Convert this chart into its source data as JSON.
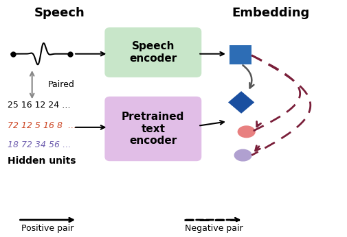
{
  "title": "",
  "speech_label": "Speech",
  "embedding_label": "Embedding",
  "speech_encoder_text": "Speech\nencoder",
  "pretrained_text": "Pretrained\ntext\nencoder",
  "hidden_units_label": "Hidden units",
  "paired_label": "Paired",
  "positive_pair_label": "Positive pair",
  "negative_pair_label": "Negative pair",
  "hu_line1": "25 16 12 24 …",
  "hu_line2": "72 12 5 16 8  …",
  "hu_line3": "18 72 34 56 …",
  "speech_box_color": "#c8e6c9",
  "pretrained_box_color": "#e1bee7",
  "square_color": "#2d6db5",
  "diamond_color": "#1a4fa0",
  "ellipse1_color": "#e88080",
  "ellipse2_color": "#b0a0d0",
  "arrow_solid_color": "#555555",
  "arrow_dashed_color": "#7a1f3a",
  "hu_line2_color": "#cc4422",
  "hu_line3_color": "#7060b0",
  "bg_color": "#ffffff"
}
